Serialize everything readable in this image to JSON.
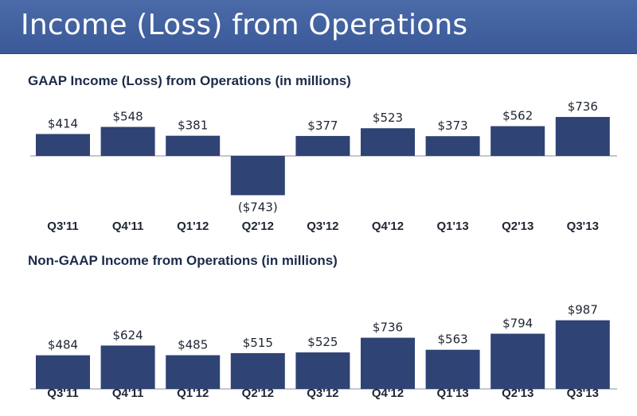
{
  "slide_title": "Income (Loss) from Operations",
  "colors": {
    "banner": "#3b5998",
    "bar": "#2f4374",
    "axis": "#8a8f99",
    "text": "#1f2533"
  },
  "chart_data": [
    {
      "type": "bar",
      "title": "GAAP Income (Loss) from Operations (in millions)",
      "categories": [
        "Q3'11",
        "Q4'11",
        "Q1'12",
        "Q2'12",
        "Q3'12",
        "Q4'12",
        "Q1'13",
        "Q2'13",
        "Q3'13"
      ],
      "values": [
        414,
        548,
        381,
        -743,
        377,
        523,
        373,
        562,
        736
      ],
      "labels": [
        "$414",
        "$548",
        "$381",
        "($743)",
        "$377",
        "$523",
        "$373",
        "$562",
        "$736"
      ],
      "xlabel": "",
      "ylabel": "",
      "grid": false
    },
    {
      "type": "bar",
      "title": "Non-GAAP Income from Operations (in millions)",
      "categories": [
        "Q3'11",
        "Q4'11",
        "Q1'12",
        "Q2'12",
        "Q3'12",
        "Q4'12",
        "Q1'13",
        "Q2'13",
        "Q3'13"
      ],
      "values": [
        484,
        624,
        485,
        515,
        525,
        736,
        563,
        794,
        987
      ],
      "labels": [
        "$484",
        "$624",
        "$485",
        "$515",
        "$525",
        "$736",
        "$563",
        "$794",
        "$987"
      ],
      "xlabel": "",
      "ylabel": "",
      "grid": false
    }
  ]
}
